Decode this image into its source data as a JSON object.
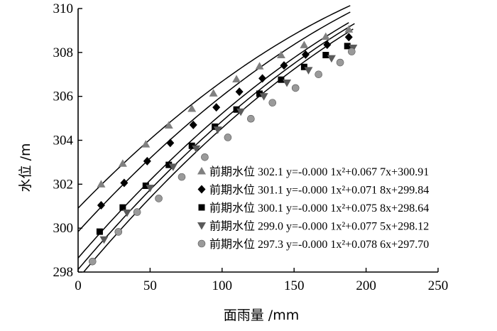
{
  "chart_data": {
    "type": "scatter",
    "xlabel": "面雨量 /mm",
    "ylabel": "水位 /m",
    "xlim": [
      0,
      250
    ],
    "ylim": [
      298,
      310
    ],
    "xticks": [
      "0",
      "50",
      "100",
      "150",
      "200",
      "250"
    ],
    "yticks": [
      "298",
      "300",
      "302",
      "304",
      "306",
      "308",
      "310"
    ],
    "grid": false,
    "legend_position": "lower-right",
    "series": [
      {
        "name": "前期水位 302.1 y=-0.000 1x²+0.067 7x+300.91",
        "marker": "triangle-up",
        "color": "#808080",
        "coef": [
          -0.0001,
          0.0677,
          300.91
        ],
        "x": [
          16,
          31,
          47,
          63,
          79,
          94,
          110,
          126,
          141,
          157,
          172,
          188
        ],
        "y": [
          302.0,
          302.94,
          303.82,
          304.68,
          305.44,
          306.14,
          306.78,
          307.37,
          307.88,
          308.34,
          308.72,
          309.05
        ]
      },
      {
        "name": "前期水位 301.1 y=-0.000 1x²+0.071 8x+299.84",
        "marker": "diamond",
        "color": "#000000",
        "coef": [
          -0.0001,
          0.0718,
          299.84
        ],
        "x": [
          16,
          32,
          48,
          64,
          80,
          96,
          112,
          128,
          143,
          158,
          173,
          188
        ],
        "y": [
          301.04,
          302.06,
          303.05,
          303.88,
          304.7,
          305.5,
          306.21,
          306.82,
          307.41,
          307.9,
          308.35,
          308.7
        ]
      },
      {
        "name": "前期水位 300.1 y=-0.000 1x²+0.075 8x+298.64",
        "marker": "square",
        "color": "#000000",
        "coef": [
          -0.0001,
          0.0758,
          298.64
        ],
        "x": [
          15,
          31,
          47,
          63,
          79,
          95,
          110,
          126,
          141,
          157,
          172,
          187
        ],
        "y": [
          299.84,
          300.94,
          301.93,
          302.88,
          303.75,
          304.62,
          305.4,
          306.12,
          306.76,
          307.34,
          307.88,
          308.29
        ]
      },
      {
        "name": "前期水位 299.0 y=-0.000 1x²+0.077 5x+298.12",
        "marker": "triangle-down",
        "color": "#5a5a5a",
        "coef": [
          -0.0001,
          0.0775,
          298.12
        ],
        "x": [
          18,
          34,
          50,
          66,
          82,
          97,
          113,
          129,
          145,
          160,
          176,
          191
        ],
        "y": [
          299.48,
          300.7,
          301.83,
          302.79,
          303.62,
          304.48,
          305.3,
          306.0,
          306.62,
          307.19,
          307.73,
          308.21
        ]
      },
      {
        "name": "前期水位 297.3 y=-0.000 1x²+0.078 6x+297.70",
        "marker": "circle",
        "color": "#9a9a9a",
        "coef": [
          -0.0001,
          0.0786,
          297.7
        ],
        "x": [
          10,
          28,
          41,
          56,
          72,
          88,
          104,
          120,
          135,
          151,
          167,
          182,
          190
        ],
        "y": [
          298.48,
          299.83,
          300.73,
          301.35,
          302.33,
          303.23,
          304.13,
          304.98,
          305.71,
          306.38,
          307.0,
          307.54,
          308.04
        ]
      }
    ]
  }
}
